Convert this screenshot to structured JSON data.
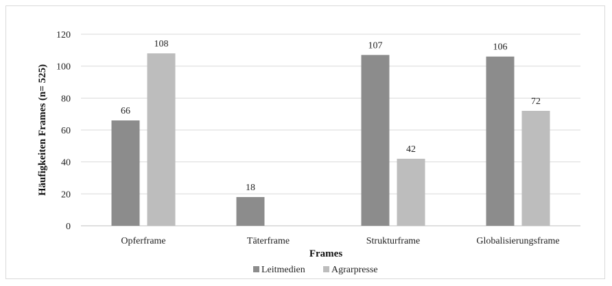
{
  "chart_data": {
    "type": "bar",
    "categories": [
      "Opferframe",
      "Täterframe",
      "Strukturframe",
      "Globalisierungsframe"
    ],
    "series": [
      {
        "name": "Leitmedien",
        "values": [
          66,
          18,
          107,
          106
        ],
        "color": "#8c8c8c"
      },
      {
        "name": "Agrarpresse",
        "values": [
          108,
          null,
          42,
          72
        ],
        "color": "#bdbdbd"
      }
    ],
    "xlabel": "Frames",
    "ylabel": "Häufigkeiten Frames (n= 525)",
    "ylim": [
      0,
      120
    ],
    "yticks": [
      0,
      20,
      40,
      60,
      80,
      100,
      120
    ],
    "grid": true,
    "legend": "bottom"
  }
}
